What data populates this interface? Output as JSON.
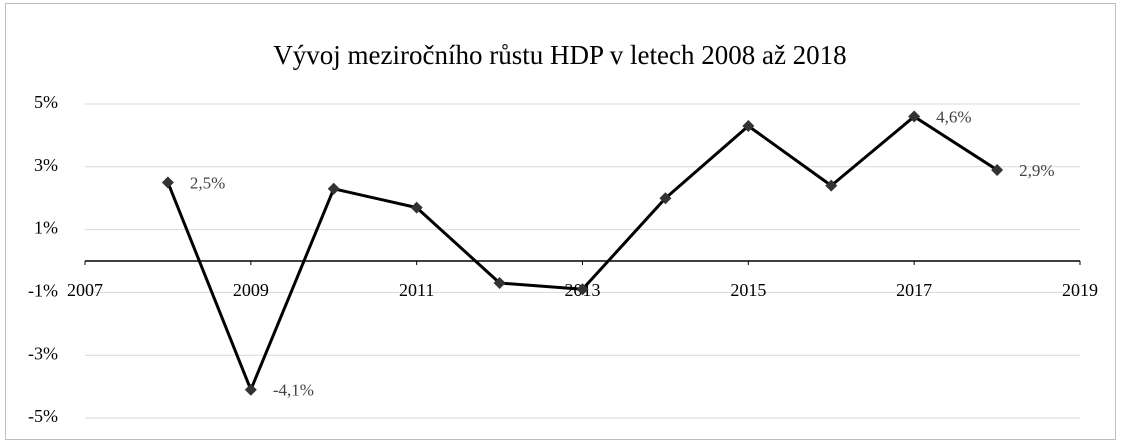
{
  "chart_data": {
    "type": "line",
    "title": "Vývoj meziročního růstu HDP v letech 2008 až 2018",
    "x": [
      2008,
      2009,
      2010,
      2011,
      2012,
      2013,
      2014,
      2015,
      2016,
      2017,
      2018
    ],
    "values": [
      2.5,
      -4.1,
      2.3,
      1.7,
      -0.7,
      -0.9,
      2.0,
      4.3,
      2.4,
      4.6,
      2.9
    ],
    "value_labels": [
      "2,5%",
      "-4,1%",
      null,
      null,
      null,
      null,
      null,
      null,
      null,
      "4,6%",
      "2,9%"
    ],
    "color": "#000000",
    "xlim": [
      2007,
      2019
    ],
    "xticks": [
      2007,
      2009,
      2011,
      2013,
      2015,
      2017,
      2019
    ],
    "ylim": [
      -5,
      5
    ],
    "yticks": [
      {
        "value": -5,
        "label": "-5%"
      },
      {
        "value": -3,
        "label": "-3%"
      },
      {
        "value": -1,
        "label": "-1%"
      },
      {
        "value": 1,
        "label": "1%"
      },
      {
        "value": 3,
        "label": "3%"
      },
      {
        "value": 5,
        "label": "5%"
      }
    ],
    "grid": true
  }
}
